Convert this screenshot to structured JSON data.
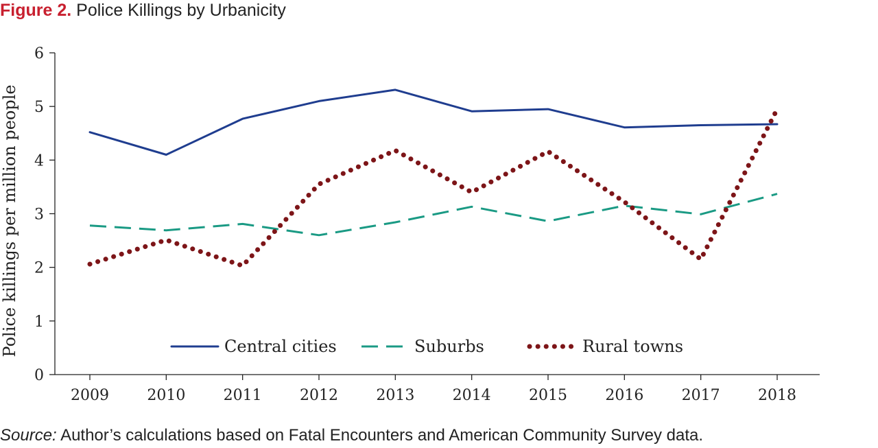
{
  "figure": {
    "number": "Figure 2.",
    "title": "Police Killings by Urbanicity"
  },
  "source": {
    "label": "Source:",
    "text": "Author’s calculations based on Fatal Encounters and American Community Survey data."
  },
  "chart_data": {
    "type": "line",
    "xlabel": "",
    "ylabel": "Police killings per million people",
    "x": [
      "2009",
      "2010",
      "2011",
      "2012",
      "2013",
      "2014",
      "2015",
      "2016",
      "2017",
      "2018"
    ],
    "ylim": [
      0,
      6
    ],
    "yticks": [
      "0",
      "1",
      "2",
      "3",
      "4",
      "5",
      "6"
    ],
    "grid": false,
    "legend_position": "bottom-center",
    "series": [
      {
        "name": "Central cities",
        "style": "solid",
        "color": "#1f3d8f",
        "values": [
          4.52,
          4.1,
          4.77,
          5.1,
          5.31,
          4.91,
          4.95,
          4.61,
          4.65,
          4.67
        ]
      },
      {
        "name": "Suburbs",
        "style": "dashed",
        "color": "#1a9a84",
        "values": [
          2.78,
          2.69,
          2.81,
          2.6,
          2.84,
          3.13,
          2.86,
          3.15,
          2.99,
          3.37
        ]
      },
      {
        "name": "Rural towns",
        "style": "dotted",
        "color": "#7d1518",
        "values": [
          2.06,
          2.51,
          2.03,
          3.55,
          4.18,
          3.4,
          4.16,
          3.22,
          2.15,
          4.95
        ]
      }
    ]
  }
}
